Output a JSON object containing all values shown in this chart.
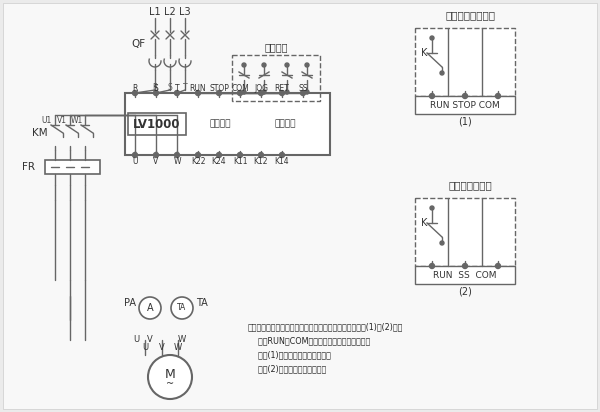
{
  "bg_color": "#ebebeb",
  "line_color": "#666666",
  "title1": "二线控制自由停车",
  "title2": "二线控制软停车",
  "label_L1": "L1",
  "label_L2": "L2",
  "label_L3": "L3",
  "label_QF": "QF",
  "label_KM": "KM",
  "label_FR": "FR",
  "label_PA": "PA",
  "label_TA": "TA",
  "label_lv": "LV1000",
  "label_bypass": "旁路控制",
  "label_fault": "故障输出",
  "label_3wire": "三线控制",
  "top_row": [
    "R",
    "S",
    "T",
    "RUN",
    "STOP",
    "COM",
    "JOG",
    "RET",
    "SS"
  ],
  "bot_row": [
    "U",
    "V",
    "W",
    "K22",
    "K24",
    "K11",
    "K12",
    "K14"
  ],
  "note_line1": "注：软启动器的外控起动、停止也可采用二线控制【见图(1)和(2)】，",
  "note_line2": "    利用RUN和COM的闭合和断开来控制起、停。",
  "note_line3": "    按图(1)接线，停车为自由停车；",
  "note_line4": "    按图(2)接线，停车为软停车。",
  "fig1_label": "(1)",
  "fig2_label": "(2)",
  "run_stop_com": "RUN STOP COM",
  "run_ss_com": "RUN  SS  COM"
}
